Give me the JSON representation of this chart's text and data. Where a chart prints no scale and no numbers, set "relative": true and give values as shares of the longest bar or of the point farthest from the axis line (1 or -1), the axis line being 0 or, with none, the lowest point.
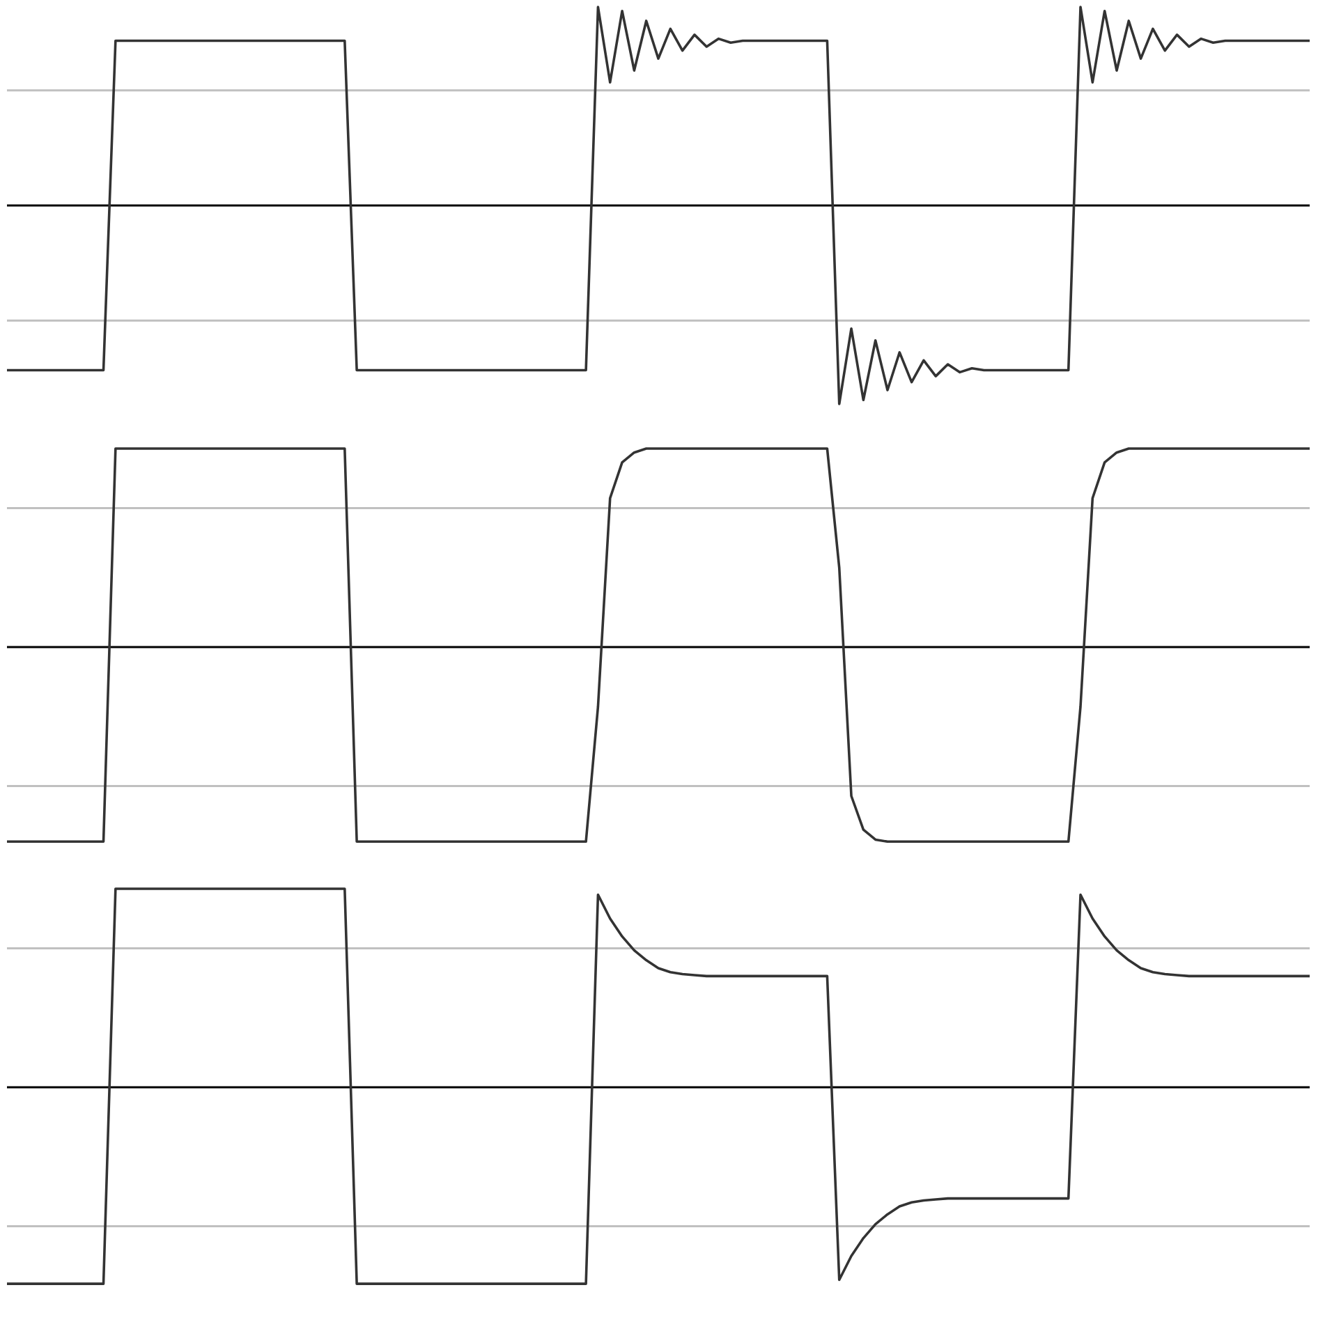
{
  "chart_data": [
    {
      "type": "line",
      "relative": true,
      "categories": [
        null,
        null,
        null,
        null,
        null,
        null,
        null,
        null,
        null,
        null,
        null,
        null,
        null,
        null,
        null,
        null,
        null,
        null,
        null,
        null,
        null,
        null,
        null,
        null,
        null,
        null,
        null,
        null,
        null,
        null,
        null,
        null,
        null,
        null,
        null,
        null,
        null,
        null,
        null,
        null,
        null,
        null,
        null,
        null,
        null,
        null,
        null,
        null,
        null,
        null,
        null,
        null,
        null,
        null,
        null,
        null,
        null,
        null,
        null,
        null,
        null,
        null,
        null,
        null,
        null,
        null,
        null,
        null,
        null,
        null,
        null,
        null,
        null,
        null,
        null,
        null,
        null,
        null,
        null,
        null,
        null,
        null,
        null,
        null,
        null,
        null,
        null,
        null,
        null,
        null,
        null,
        null,
        null,
        null,
        null,
        null,
        null,
        null,
        null,
        null,
        null,
        null,
        null,
        null,
        null,
        null,
        null,
        null,
        null
      ],
      "series": [
        {
          "color": "#333333",
          "values": [
            -0.83,
            -0.83,
            -0.83,
            -0.83,
            -0.83,
            -0.83,
            -0.83,
            -0.83,
            -0.83,
            0.83,
            0.83,
            0.83,
            0.83,
            0.83,
            0.83,
            0.83,
            0.83,
            0.83,
            0.83,
            0.83,
            0.83,
            0.83,
            0.83,
            0.83,
            0.83,
            0.83,
            0.83,
            0.83,
            0.83,
            -0.83,
            -0.83,
            -0.83,
            -0.83,
            -0.83,
            -0.83,
            -0.83,
            -0.83,
            -0.83,
            -0.83,
            -0.83,
            -0.83,
            -0.83,
            -0.83,
            -0.83,
            -0.83,
            -0.83,
            -0.83,
            -0.83,
            -0.83,
            1.0,
            0.62,
            0.98,
            0.68,
            0.93,
            0.74,
            0.89,
            0.78,
            0.86,
            0.8,
            0.84,
            0.82,
            0.83,
            0.83,
            0.83,
            0.83,
            0.83,
            0.83,
            0.83,
            0.83,
            -1.0,
            -0.62,
            -0.98,
            -0.68,
            -0.93,
            -0.74,
            -0.89,
            -0.78,
            -0.86,
            -0.8,
            -0.84,
            -0.82,
            -0.83,
            -0.83,
            -0.83,
            -0.83,
            -0.83,
            -0.83,
            -0.83,
            -0.83,
            1.0,
            0.62,
            0.98,
            0.68,
            0.93,
            0.74,
            0.89,
            0.78,
            0.86,
            0.8,
            0.84,
            0.82,
            0.83,
            0.83,
            0.83,
            0.83,
            0.83,
            0.83,
            0.83,
            0.83
          ]
        }
      ],
      "ref_lines": [
        {
          "axis": "y",
          "value": 0.58,
          "color": "#c0c0c0"
        },
        {
          "axis": "y",
          "value": -0.58,
          "color": "#c0c0c0"
        }
      ]
    },
    {
      "type": "line",
      "relative": true,
      "categories": [
        null,
        null,
        null,
        null,
        null,
        null,
        null,
        null,
        null,
        null,
        null,
        null,
        null,
        null,
        null,
        null,
        null,
        null,
        null,
        null,
        null,
        null,
        null,
        null,
        null,
        null,
        null,
        null,
        null,
        null,
        null,
        null,
        null,
        null,
        null,
        null,
        null,
        null,
        null,
        null,
        null,
        null,
        null,
        null,
        null,
        null,
        null,
        null,
        null,
        null,
        null,
        null,
        null,
        null,
        null,
        null,
        null,
        null,
        null,
        null,
        null,
        null,
        null,
        null,
        null,
        null,
        null,
        null,
        null,
        null,
        null,
        null,
        null,
        null,
        null,
        null,
        null,
        null,
        null,
        null,
        null,
        null,
        null,
        null,
        null,
        null,
        null,
        null,
        null,
        null,
        null,
        null,
        null,
        null,
        null,
        null,
        null,
        null,
        null,
        null,
        null,
        null,
        null,
        null,
        null,
        null,
        null,
        null,
        null
      ],
      "series": [
        {
          "color": "#333333",
          "values": [
            -0.98,
            -0.98,
            -0.98,
            -0.98,
            -0.98,
            -0.98,
            -0.98,
            -0.98,
            -0.98,
            1,
            1,
            1,
            1,
            1,
            1,
            1,
            1,
            1,
            1,
            1,
            1,
            1,
            1,
            1,
            1,
            1,
            1,
            1,
            1,
            -0.98,
            -0.98,
            -0.98,
            -0.98,
            -0.98,
            -0.98,
            -0.98,
            -0.98,
            -0.98,
            -0.98,
            -0.98,
            -0.98,
            -0.98,
            -0.98,
            -0.98,
            -0.98,
            -0.98,
            -0.98,
            -0.98,
            -0.98,
            -0.3,
            0.75,
            0.93,
            0.98,
            1,
            1,
            1,
            1,
            1,
            1,
            1,
            1,
            1,
            1,
            1,
            1,
            1,
            1,
            1,
            1,
            0.4,
            -0.75,
            -0.92,
            -0.97,
            -0.98,
            -0.98,
            -0.98,
            -0.98,
            -0.98,
            -0.98,
            -0.98,
            -0.98,
            -0.98,
            -0.98,
            -0.98,
            -0.98,
            -0.98,
            -0.98,
            -0.98,
            -0.98,
            -0.3,
            0.75,
            0.93,
            0.98,
            1,
            1,
            1,
            1,
            1,
            1,
            1,
            1,
            1,
            1,
            1,
            1,
            1,
            1,
            1,
            1
          ]
        }
      ],
      "ref_lines": [
        {
          "axis": "y",
          "value": 0.7,
          "color": "#c0c0c0"
        },
        {
          "axis": "y",
          "value": -0.7,
          "color": "#c0c0c0"
        }
      ]
    },
    {
      "type": "line",
      "relative": true,
      "categories": [
        null,
        null,
        null,
        null,
        null,
        null,
        null,
        null,
        null,
        null,
        null,
        null,
        null,
        null,
        null,
        null,
        null,
        null,
        null,
        null,
        null,
        null,
        null,
        null,
        null,
        null,
        null,
        null,
        null,
        null,
        null,
        null,
        null,
        null,
        null,
        null,
        null,
        null,
        null,
        null,
        null,
        null,
        null,
        null,
        null,
        null,
        null,
        null,
        null,
        null,
        null,
        null,
        null,
        null,
        null,
        null,
        null,
        null,
        null,
        null,
        null,
        null,
        null,
        null,
        null,
        null,
        null,
        null,
        null,
        null,
        null,
        null,
        null,
        null,
        null,
        null,
        null,
        null,
        null,
        null,
        null,
        null,
        null,
        null,
        null,
        null,
        null,
        null,
        null,
        null,
        null,
        null,
        null,
        null,
        null,
        null,
        null,
        null,
        null,
        null,
        null,
        null,
        null,
        null,
        null,
        null,
        null,
        null,
        null
      ],
      "series": [
        {
          "color": "#333333",
          "values": [
            -0.99,
            -0.99,
            -0.99,
            -0.99,
            -0.99,
            -0.99,
            -0.99,
            -0.99,
            -0.99,
            1,
            1,
            1,
            1,
            1,
            1,
            1,
            1,
            1,
            1,
            1,
            1,
            1,
            1,
            1,
            1,
            1,
            1,
            1,
            1,
            -0.99,
            -0.99,
            -0.99,
            -0.99,
            -0.99,
            -0.99,
            -0.99,
            -0.99,
            -0.99,
            -0.99,
            -0.99,
            -0.99,
            -0.99,
            -0.99,
            -0.99,
            -0.99,
            -0.99,
            -0.99,
            -0.99,
            -0.99,
            0.97,
            0.85,
            0.76,
            0.69,
            0.64,
            0.6,
            0.58,
            0.57,
            0.565,
            0.56,
            0.56,
            0.56,
            0.56,
            0.56,
            0.56,
            0.56,
            0.56,
            0.56,
            0.56,
            0.56,
            -0.97,
            -0.85,
            -0.76,
            -0.69,
            -0.64,
            -0.6,
            -0.58,
            -0.57,
            -0.565,
            -0.56,
            -0.56,
            -0.56,
            -0.56,
            -0.56,
            -0.56,
            -0.56,
            -0.56,
            -0.56,
            -0.56,
            -0.56,
            0.97,
            0.85,
            0.76,
            0.69,
            0.64,
            0.6,
            0.58,
            0.57,
            0.565,
            0.56,
            0.56,
            0.56,
            0.56,
            0.56,
            0.56,
            0.56,
            0.56,
            0.56,
            0.56,
            0.56
          ]
        }
      ],
      "ref_lines": [
        {
          "axis": "y",
          "value": 0.7,
          "color": "#c0c0c0"
        },
        {
          "axis": "y",
          "value": -0.7,
          "color": "#c0c0c0"
        }
      ]
    }
  ]
}
